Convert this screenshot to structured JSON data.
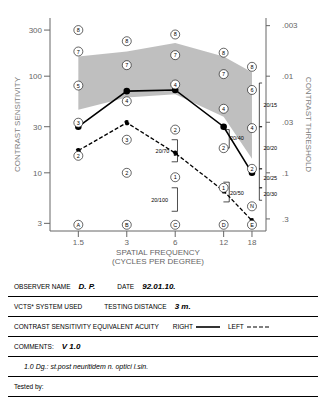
{
  "chart_data": {
    "type": "line",
    "xlabel": "SPATIAL FREQUENCY\n(CYCLES PER DEGREE)",
    "ylabel": "CONTRAST SENSITIVITY",
    "y2label": "CONTRAST THRESHOLD",
    "log": true,
    "xlim": [
      1.0,
      22
    ],
    "xticks": [
      1.5,
      3,
      6,
      12,
      18
    ],
    "ylim": [
      2.5,
      400
    ],
    "yticks": [
      3,
      10,
      30,
      100,
      300
    ],
    "y2lim": [
      0.4,
      0.0025
    ],
    "y2ticks": [
      {
        "value": 0.003,
        "label": ".003"
      },
      {
        "value": 0.01,
        "label": ".01"
      },
      {
        "value": 0.03,
        "label": ".03"
      },
      {
        "value": 0.1,
        "label": ".1"
      },
      {
        "value": 0.3,
        "label": ".3"
      }
    ],
    "band": {
      "x": [
        1.5,
        3,
        6,
        12,
        18
      ],
      "lower": [
        45,
        60,
        65,
        38,
        14
      ],
      "upper": [
        160,
        180,
        220,
        160,
        110
      ],
      "color": "#b8b8b8"
    },
    "series": [
      {
        "name": "RIGHT",
        "color": "#000000",
        "line_style": "solid",
        "marker": "circle",
        "x": [
          1.5,
          3,
          6,
          12,
          18
        ],
        "values": [
          30,
          70,
          72,
          30,
          10
        ]
      },
      {
        "name": "LEFT",
        "color": "#000000",
        "line_style": "dashed",
        "marker": "circle",
        "x": [
          1.5,
          3,
          6,
          12,
          18
        ],
        "values": [
          17,
          33,
          16,
          6.5,
          3.2
        ]
      }
    ],
    "circled_labels": [
      {
        "x": 1.5,
        "y": 300,
        "text": "8"
      },
      {
        "x": 1.5,
        "y": 180,
        "text": "7"
      },
      {
        "x": 1.5,
        "y": 80,
        "text": "5"
      },
      {
        "x": 1.5,
        "y": 33,
        "text": "3"
      },
      {
        "x": 1.5,
        "y": 15,
        "text": "2"
      },
      {
        "x": 3,
        "y": 230,
        "text": "8"
      },
      {
        "x": 3,
        "y": 130,
        "text": "7"
      },
      {
        "x": 3,
        "y": 55,
        "text": "4"
      },
      {
        "x": 3,
        "y": 22,
        "text": "3"
      },
      {
        "x": 3,
        "y": 10,
        "text": "2"
      },
      {
        "x": 6,
        "y": 270,
        "text": "8"
      },
      {
        "x": 6,
        "y": 165,
        "text": "7"
      },
      {
        "x": 6,
        "y": 82,
        "text": "4"
      },
      {
        "x": 6,
        "y": 28,
        "text": "2"
      },
      {
        "x": 6,
        "y": 9,
        "text": "1"
      },
      {
        "x": 12,
        "y": 175,
        "text": "8"
      },
      {
        "x": 12,
        "y": 105,
        "text": "7"
      },
      {
        "x": 12,
        "y": 46,
        "text": "4"
      },
      {
        "x": 12,
        "y": 18,
        "text": "2"
      },
      {
        "x": 12,
        "y": 7,
        "text": "1"
      },
      {
        "x": 18,
        "y": 125,
        "text": "8"
      },
      {
        "x": 18,
        "y": 72,
        "text": "6"
      },
      {
        "x": 18,
        "y": 29,
        "text": "4"
      },
      {
        "x": 18,
        "y": 11,
        "text": "2"
      },
      {
        "x": 18,
        "y": 4.5,
        "text": "N"
      },
      {
        "x": 1.5,
        "y": 2.9,
        "text": "A"
      },
      {
        "x": 3,
        "y": 2.9,
        "text": "B"
      },
      {
        "x": 6,
        "y": 2.9,
        "text": "C"
      },
      {
        "x": 12,
        "y": 2.9,
        "text": "D"
      },
      {
        "x": 18,
        "y": 2.9,
        "text": "E"
      }
    ],
    "brackets": [
      {
        "x": 20.0,
        "y_top": 85,
        "y_bottom": 30,
        "text": "20/15",
        "side": "right"
      },
      {
        "x": 20.0,
        "y_top": 30,
        "y_bottom": 11,
        "text": "20/20",
        "side": "right"
      },
      {
        "x": 20.0,
        "y_top": 11,
        "y_bottom": 7.0,
        "text": "20/25",
        "side": "right"
      },
      {
        "x": 20.0,
        "y_top": 7.0,
        "y_bottom": 5.2,
        "text": "20/30",
        "side": "right"
      },
      {
        "x": 6.2,
        "y_top": 22,
        "y_bottom": 13,
        "text": "20/70",
        "side": "left",
        "text_x": 5.0,
        "text_y": 17
      },
      {
        "x": 6.2,
        "y_top": 7,
        "y_bottom": 4.0,
        "text": "20/100",
        "side": "left",
        "text_x": 4.8,
        "text_y": 5.2
      },
      {
        "x": 13.0,
        "y_top": 28,
        "y_bottom": 18,
        "text": "20/40",
        "side": "left",
        "text_x": 14.5,
        "text_y": 23
      },
      {
        "x": 13.0,
        "y_top": 8,
        "y_bottom": 5.0,
        "text": "20/50",
        "side": "left",
        "text_x": 14.5,
        "text_y": 6.2
      }
    ],
    "form": [
      [
        {
          "label": "OBSERVER NAME",
          "value": "D. P."
        },
        {
          "label": "DATE",
          "value": "92.01.10."
        }
      ],
      [
        {
          "label": "VCTS* SYSTEM USED"
        },
        {
          "label": "TESTING DISTANCE",
          "value": "3 m."
        }
      ],
      [
        {
          "label": "CONTRAST SENSITIVITY EQUIVALENT ACUITY",
          "legend": "right"
        }
      ],
      [
        {
          "label": "COMMENTS:",
          "value": "V 1.0"
        }
      ],
      [
        {
          "value": "1.0  Dg.: st.post neuritidem n. optici l.sin."
        }
      ],
      [
        {
          "label": "Tested by:"
        }
      ]
    ]
  }
}
